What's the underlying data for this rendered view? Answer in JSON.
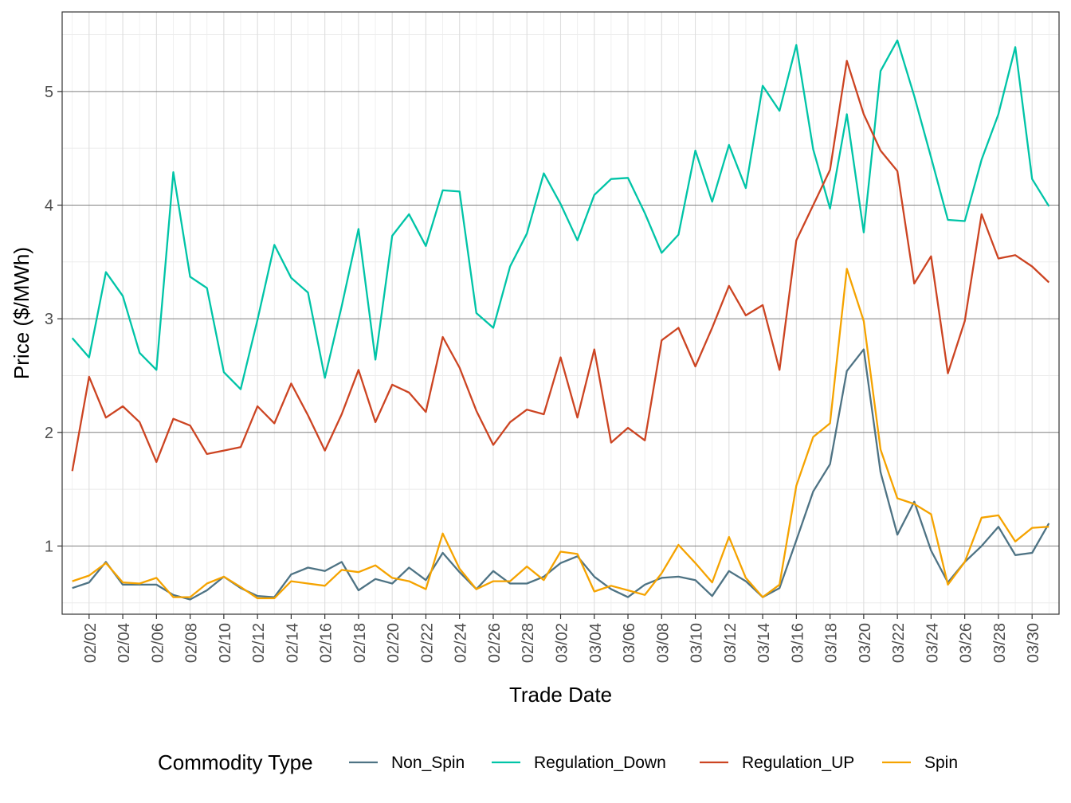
{
  "chart_data": {
    "type": "line",
    "xlabel": "Trade Date",
    "ylabel": "Price ($/MWh)",
    "ylim": [
      0.4,
      5.7
    ],
    "yticks": [
      1,
      2,
      3,
      4,
      5
    ],
    "grid": true,
    "legend": {
      "title": "Commodity Type",
      "placement": "bottom"
    },
    "x": [
      "02/01",
      "02/02",
      "02/03",
      "02/04",
      "02/05",
      "02/06",
      "02/07",
      "02/08",
      "02/09",
      "02/10",
      "02/11",
      "02/12",
      "02/13",
      "02/14",
      "02/15",
      "02/16",
      "02/17",
      "02/18",
      "02/19",
      "02/20",
      "02/21",
      "02/22",
      "02/23",
      "02/24",
      "02/25",
      "02/26",
      "02/27",
      "02/28",
      "03/01",
      "03/02",
      "03/03",
      "03/04",
      "03/05",
      "03/06",
      "03/07",
      "03/08",
      "03/09",
      "03/10",
      "03/11",
      "03/12",
      "03/13",
      "03/14",
      "03/15",
      "03/16",
      "03/17",
      "03/18",
      "03/19",
      "03/20",
      "03/21",
      "03/22",
      "03/23",
      "03/24",
      "03/25",
      "03/26",
      "03/27",
      "03/28",
      "03/29",
      "03/30",
      "03/31"
    ],
    "xticks": [
      "02/02",
      "02/04",
      "02/06",
      "02/08",
      "02/10",
      "02/12",
      "02/14",
      "02/16",
      "02/18",
      "02/20",
      "02/22",
      "02/24",
      "02/26",
      "02/28",
      "03/02",
      "03/04",
      "03/06",
      "03/08",
      "03/10",
      "03/12",
      "03/14",
      "03/16",
      "03/18",
      "03/20",
      "03/22",
      "03/24",
      "03/26",
      "03/28",
      "03/30"
    ],
    "series": [
      {
        "name": "Non_Spin",
        "color": "#4e7384",
        "values": [
          0.63,
          0.68,
          0.86,
          0.66,
          0.66,
          0.66,
          0.57,
          0.53,
          0.61,
          0.73,
          0.63,
          0.56,
          0.55,
          0.75,
          0.81,
          0.78,
          0.86,
          0.61,
          0.71,
          0.67,
          0.81,
          0.7,
          0.94,
          0.77,
          0.62,
          0.78,
          0.67,
          0.67,
          0.73,
          0.85,
          0.91,
          0.73,
          0.62,
          0.55,
          0.66,
          0.72,
          0.73,
          0.7,
          0.56,
          0.78,
          0.69,
          0.55,
          0.63,
          1.05,
          1.48,
          1.72,
          2.54,
          2.73,
          1.65,
          1.1,
          1.39,
          0.96,
          0.68,
          0.86,
          1.0,
          1.17,
          0.92,
          0.94,
          1.2
        ]
      },
      {
        "name": "Regulation_Down",
        "color": "#00c4a7",
        "values": [
          2.83,
          2.66,
          3.41,
          3.2,
          2.7,
          2.55,
          4.29,
          3.37,
          3.27,
          2.53,
          2.38,
          2.99,
          3.65,
          3.36,
          3.23,
          2.48,
          3.11,
          3.79,
          2.64,
          3.73,
          3.92,
          3.64,
          4.13,
          4.12,
          3.05,
          2.92,
          3.46,
          3.75,
          4.28,
          4.01,
          3.69,
          4.09,
          4.23,
          4.24,
          3.93,
          3.58,
          3.74,
          4.48,
          4.03,
          4.53,
          4.15,
          5.05,
          4.83,
          5.41,
          4.49,
          3.97,
          4.8,
          3.76,
          5.18,
          5.45,
          4.96,
          4.42,
          3.87,
          3.86,
          4.4,
          4.8,
          5.39,
          4.23,
          3.99
        ]
      },
      {
        "name": "Regulation_UP",
        "color": "#cc4422",
        "values": [
          1.66,
          2.49,
          2.13,
          2.23,
          2.09,
          1.74,
          2.12,
          2.06,
          1.81,
          1.84,
          1.87,
          2.23,
          2.08,
          2.43,
          2.15,
          1.84,
          2.16,
          2.55,
          2.09,
          2.42,
          2.35,
          2.18,
          2.84,
          2.57,
          2.19,
          1.89,
          2.09,
          2.2,
          2.16,
          2.66,
          2.13,
          2.73,
          1.91,
          2.04,
          1.93,
          2.81,
          2.92,
          2.58,
          2.92,
          3.29,
          3.03,
          3.12,
          2.55,
          3.69,
          4.0,
          4.31,
          5.27,
          4.8,
          4.48,
          4.3,
          3.31,
          3.55,
          2.52,
          2.98,
          3.92,
          3.53,
          3.56,
          3.46,
          3.32
        ]
      },
      {
        "name": "Spin",
        "color": "#f5a300",
        "values": [
          0.69,
          0.74,
          0.85,
          0.68,
          0.67,
          0.72,
          0.55,
          0.55,
          0.67,
          0.73,
          0.64,
          0.54,
          0.54,
          0.69,
          0.67,
          0.65,
          0.79,
          0.77,
          0.83,
          0.72,
          0.69,
          0.62,
          1.11,
          0.8,
          0.62,
          0.69,
          0.69,
          0.82,
          0.7,
          0.95,
          0.93,
          0.6,
          0.65,
          0.61,
          0.57,
          0.76,
          1.01,
          0.85,
          0.68,
          1.08,
          0.72,
          0.55,
          0.66,
          1.53,
          1.96,
          2.08,
          3.44,
          2.98,
          1.85,
          1.42,
          1.37,
          1.28,
          0.66,
          0.86,
          1.25,
          1.27,
          1.04,
          1.16,
          1.17
        ]
      }
    ]
  }
}
